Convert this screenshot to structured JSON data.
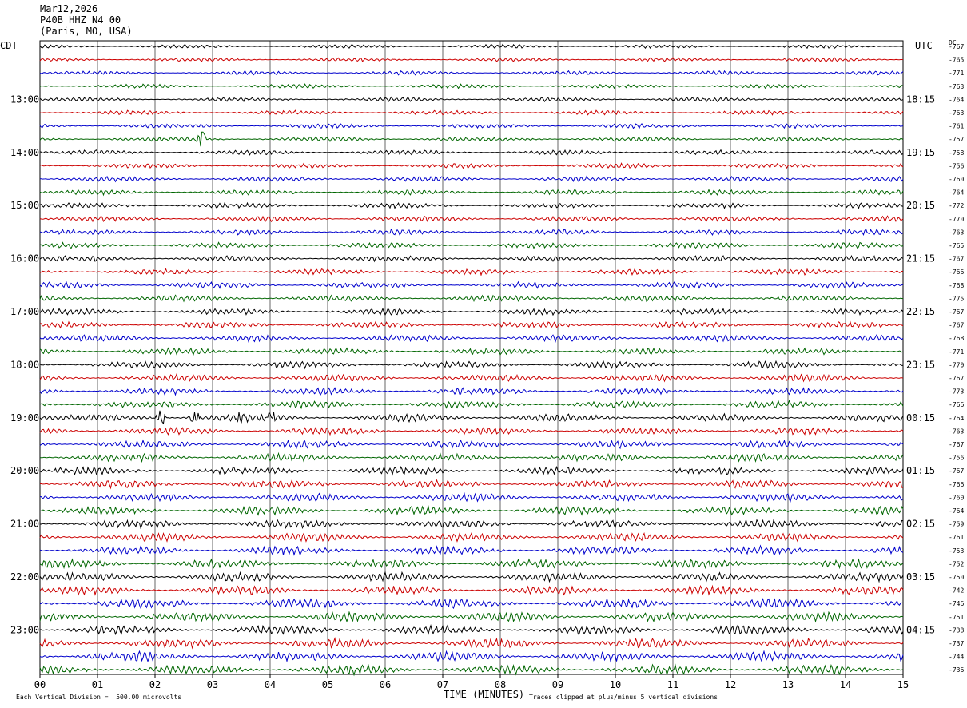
{
  "header": {
    "date": "Mar12,2026",
    "station": "P40B HHZ N4 00",
    "location": "(Paris, MO, USA)"
  },
  "left_zone": "CDT",
  "right_zone": "UTC",
  "dc_label": "DC",
  "xlabel": "TIME (MINUTES)",
  "footer_left": "Each Vertical Division =  500.00 microvolts",
  "footer_right": "Traces clipped at plus/minus 5 vertical divisions",
  "colors": {
    "trace_cycle": [
      "#000000",
      "#cc0000",
      "#0000cc",
      "#006600"
    ],
    "grid": "#000000"
  },
  "chart_data": {
    "type": "line",
    "title": "",
    "xlim": [
      0,
      15
    ],
    "x_ticks": [
      "00",
      "01",
      "02",
      "03",
      "04",
      "05",
      "06",
      "07",
      "08",
      "09",
      "10",
      "11",
      "12",
      "13",
      "14",
      "15"
    ],
    "left_hour_labels": [
      "13:00",
      "14:00",
      "15:00",
      "16:00",
      "17:00",
      "18:00",
      "19:00",
      "20:00",
      "21:00",
      "22:00",
      "23:00"
    ],
    "right_hour_labels": [
      "18:15",
      "19:15",
      "20:15",
      "21:15",
      "22:15",
      "23:15",
      "00:15",
      "01:15",
      "02:15",
      "03:15",
      "04:15"
    ],
    "dc_offsets": [
      -767,
      -765,
      -771,
      -763,
      -764,
      -763,
      -761,
      -757,
      -758,
      -756,
      -760,
      -764,
      -772,
      -770,
      -763,
      -765,
      -767,
      -766,
      -768,
      -775,
      -767,
      -767,
      -768,
      -771,
      -770,
      -767,
      -773,
      -766,
      -764,
      -763,
      -767,
      -756,
      -767,
      -766,
      -760,
      -764,
      -759,
      -761,
      -753,
      -752,
      -750,
      -742,
      -746,
      -751,
      -738,
      -737,
      -744,
      -736
    ],
    "trace_count": 48,
    "events": [
      {
        "trace": 7,
        "minute": 2.8,
        "type": "spike"
      },
      {
        "trace": 28,
        "minute": 2.1,
        "type": "burst"
      },
      {
        "trace": 28,
        "minute": 2.7,
        "type": "burst"
      },
      {
        "trace": 28,
        "minute": 3.5,
        "type": "burst"
      },
      {
        "trace": 28,
        "minute": 4.0,
        "type": "burst"
      }
    ]
  }
}
